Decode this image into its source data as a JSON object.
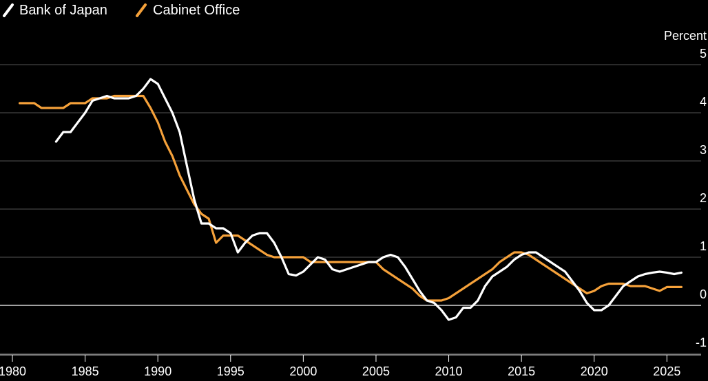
{
  "chart_data": {
    "type": "line",
    "title": "",
    "xlabel": "",
    "ylabel": "Percent",
    "xlim": [
      1980,
      2026.5
    ],
    "ylim": [
      -1,
      5
    ],
    "x_ticks": [
      "1980",
      "1985",
      "1990",
      "1995",
      "2000",
      "2005",
      "2010",
      "2015",
      "2020",
      "2025"
    ],
    "y_ticks": [
      "5",
      "4",
      "3",
      "2",
      "1",
      "0",
      "-1"
    ],
    "grid": true,
    "legend_position": "top-left",
    "colors": {
      "background": "#000000",
      "boj": "#ffffff",
      "cabinet": "#f5a13a",
      "grid": "#555555"
    },
    "series": [
      {
        "name": "Bank of Japan",
        "color": "#ffffff",
        "points": [
          [
            1983.0,
            3.4
          ],
          [
            1983.5,
            3.6
          ],
          [
            1984.0,
            3.6
          ],
          [
            1984.5,
            3.8
          ],
          [
            1985.0,
            4.0
          ],
          [
            1985.5,
            4.25
          ],
          [
            1986.0,
            4.3
          ],
          [
            1986.5,
            4.35
          ],
          [
            1987.0,
            4.3
          ],
          [
            1987.5,
            4.3
          ],
          [
            1988.0,
            4.3
          ],
          [
            1988.5,
            4.35
          ],
          [
            1989.0,
            4.5
          ],
          [
            1989.5,
            4.7
          ],
          [
            1990.0,
            4.6
          ],
          [
            1990.5,
            4.3
          ],
          [
            1991.0,
            4.0
          ],
          [
            1991.5,
            3.6
          ],
          [
            1992.0,
            2.9
          ],
          [
            1992.5,
            2.2
          ],
          [
            1993.0,
            1.7
          ],
          [
            1993.5,
            1.7
          ],
          [
            1994.0,
            1.6
          ],
          [
            1994.5,
            1.6
          ],
          [
            1995.0,
            1.5
          ],
          [
            1995.5,
            1.1
          ],
          [
            1996.0,
            1.3
          ],
          [
            1996.5,
            1.45
          ],
          [
            1997.0,
            1.5
          ],
          [
            1997.5,
            1.5
          ],
          [
            1998.0,
            1.3
          ],
          [
            1998.5,
            1.0
          ],
          [
            1999.0,
            0.65
          ],
          [
            1999.5,
            0.62
          ],
          [
            2000.0,
            0.7
          ],
          [
            2000.5,
            0.85
          ],
          [
            2001.0,
            1.0
          ],
          [
            2001.5,
            0.95
          ],
          [
            2002.0,
            0.75
          ],
          [
            2002.5,
            0.7
          ],
          [
            2003.0,
            0.75
          ],
          [
            2003.5,
            0.8
          ],
          [
            2004.0,
            0.85
          ],
          [
            2004.5,
            0.9
          ],
          [
            2005.0,
            0.9
          ],
          [
            2005.5,
            1.0
          ],
          [
            2006.0,
            1.05
          ],
          [
            2006.5,
            1.0
          ],
          [
            2007.0,
            0.8
          ],
          [
            2007.5,
            0.55
          ],
          [
            2008.0,
            0.3
          ],
          [
            2008.5,
            0.1
          ],
          [
            2009.0,
            0.05
          ],
          [
            2009.5,
            -0.1
          ],
          [
            2010.0,
            -0.3
          ],
          [
            2010.5,
            -0.25
          ],
          [
            2011.0,
            -0.05
          ],
          [
            2011.5,
            -0.05
          ],
          [
            2012.0,
            0.1
          ],
          [
            2012.5,
            0.4
          ],
          [
            2013.0,
            0.6
          ],
          [
            2013.5,
            0.7
          ],
          [
            2014.0,
            0.8
          ],
          [
            2014.5,
            0.95
          ],
          [
            2015.0,
            1.05
          ],
          [
            2015.5,
            1.1
          ],
          [
            2016.0,
            1.1
          ],
          [
            2016.5,
            1.0
          ],
          [
            2017.0,
            0.9
          ],
          [
            2017.5,
            0.8
          ],
          [
            2018.0,
            0.7
          ],
          [
            2018.5,
            0.5
          ],
          [
            2019.0,
            0.3
          ],
          [
            2019.5,
            0.05
          ],
          [
            2020.0,
            -0.1
          ],
          [
            2020.5,
            -0.1
          ],
          [
            2021.0,
            0.0
          ],
          [
            2021.5,
            0.2
          ],
          [
            2022.0,
            0.4
          ],
          [
            2022.5,
            0.5
          ],
          [
            2023.0,
            0.6
          ],
          [
            2023.5,
            0.65
          ],
          [
            2024.0,
            0.68
          ],
          [
            2024.5,
            0.7
          ],
          [
            2025.0,
            0.68
          ],
          [
            2025.5,
            0.65
          ],
          [
            2026.0,
            0.68
          ]
        ]
      },
      {
        "name": "Cabinet Office",
        "color": "#f5a13a",
        "points": [
          [
            1980.5,
            4.2
          ],
          [
            1981.5,
            4.2
          ],
          [
            1982.0,
            4.1
          ],
          [
            1983.5,
            4.1
          ],
          [
            1984.0,
            4.2
          ],
          [
            1985.0,
            4.2
          ],
          [
            1985.5,
            4.3
          ],
          [
            1986.5,
            4.3
          ],
          [
            1987.0,
            4.35
          ],
          [
            1989.0,
            4.35
          ],
          [
            1989.5,
            4.1
          ],
          [
            1990.0,
            3.8
          ],
          [
            1990.5,
            3.4
          ],
          [
            1991.0,
            3.1
          ],
          [
            1991.5,
            2.7
          ],
          [
            1992.0,
            2.4
          ],
          [
            1992.5,
            2.1
          ],
          [
            1993.0,
            1.9
          ],
          [
            1993.5,
            1.8
          ],
          [
            1994.0,
            1.3
          ],
          [
            1994.5,
            1.45
          ],
          [
            1995.0,
            1.45
          ],
          [
            1995.5,
            1.45
          ],
          [
            1996.0,
            1.35
          ],
          [
            1996.5,
            1.25
          ],
          [
            1997.0,
            1.15
          ],
          [
            1997.5,
            1.05
          ],
          [
            1998.0,
            1.0
          ],
          [
            1998.5,
            1.0
          ],
          [
            1999.0,
            1.0
          ],
          [
            1999.5,
            1.0
          ],
          [
            2000.0,
            1.0
          ],
          [
            2000.5,
            0.9
          ],
          [
            2005.0,
            0.9
          ],
          [
            2005.5,
            0.75
          ],
          [
            2006.0,
            0.65
          ],
          [
            2006.5,
            0.55
          ],
          [
            2007.0,
            0.45
          ],
          [
            2007.5,
            0.35
          ],
          [
            2008.0,
            0.2
          ],
          [
            2008.5,
            0.1
          ],
          [
            2009.0,
            0.1
          ],
          [
            2009.5,
            0.1
          ],
          [
            2010.0,
            0.15
          ],
          [
            2010.5,
            0.25
          ],
          [
            2011.0,
            0.35
          ],
          [
            2011.5,
            0.45
          ],
          [
            2012.0,
            0.55
          ],
          [
            2012.5,
            0.65
          ],
          [
            2013.0,
            0.75
          ],
          [
            2013.5,
            0.9
          ],
          [
            2014.0,
            1.0
          ],
          [
            2014.5,
            1.1
          ],
          [
            2015.0,
            1.1
          ],
          [
            2015.5,
            1.05
          ],
          [
            2016.0,
            0.95
          ],
          [
            2016.5,
            0.85
          ],
          [
            2017.0,
            0.75
          ],
          [
            2017.5,
            0.65
          ],
          [
            2018.0,
            0.55
          ],
          [
            2018.5,
            0.45
          ],
          [
            2019.0,
            0.35
          ],
          [
            2019.5,
            0.25
          ],
          [
            2020.0,
            0.3
          ],
          [
            2020.5,
            0.4
          ],
          [
            2021.0,
            0.45
          ],
          [
            2021.5,
            0.45
          ],
          [
            2022.0,
            0.45
          ],
          [
            2022.5,
            0.4
          ],
          [
            2023.0,
            0.4
          ],
          [
            2023.5,
            0.4
          ],
          [
            2024.0,
            0.35
          ],
          [
            2024.5,
            0.3
          ],
          [
            2025.0,
            0.38
          ],
          [
            2026.0,
            0.38
          ]
        ]
      }
    ]
  }
}
